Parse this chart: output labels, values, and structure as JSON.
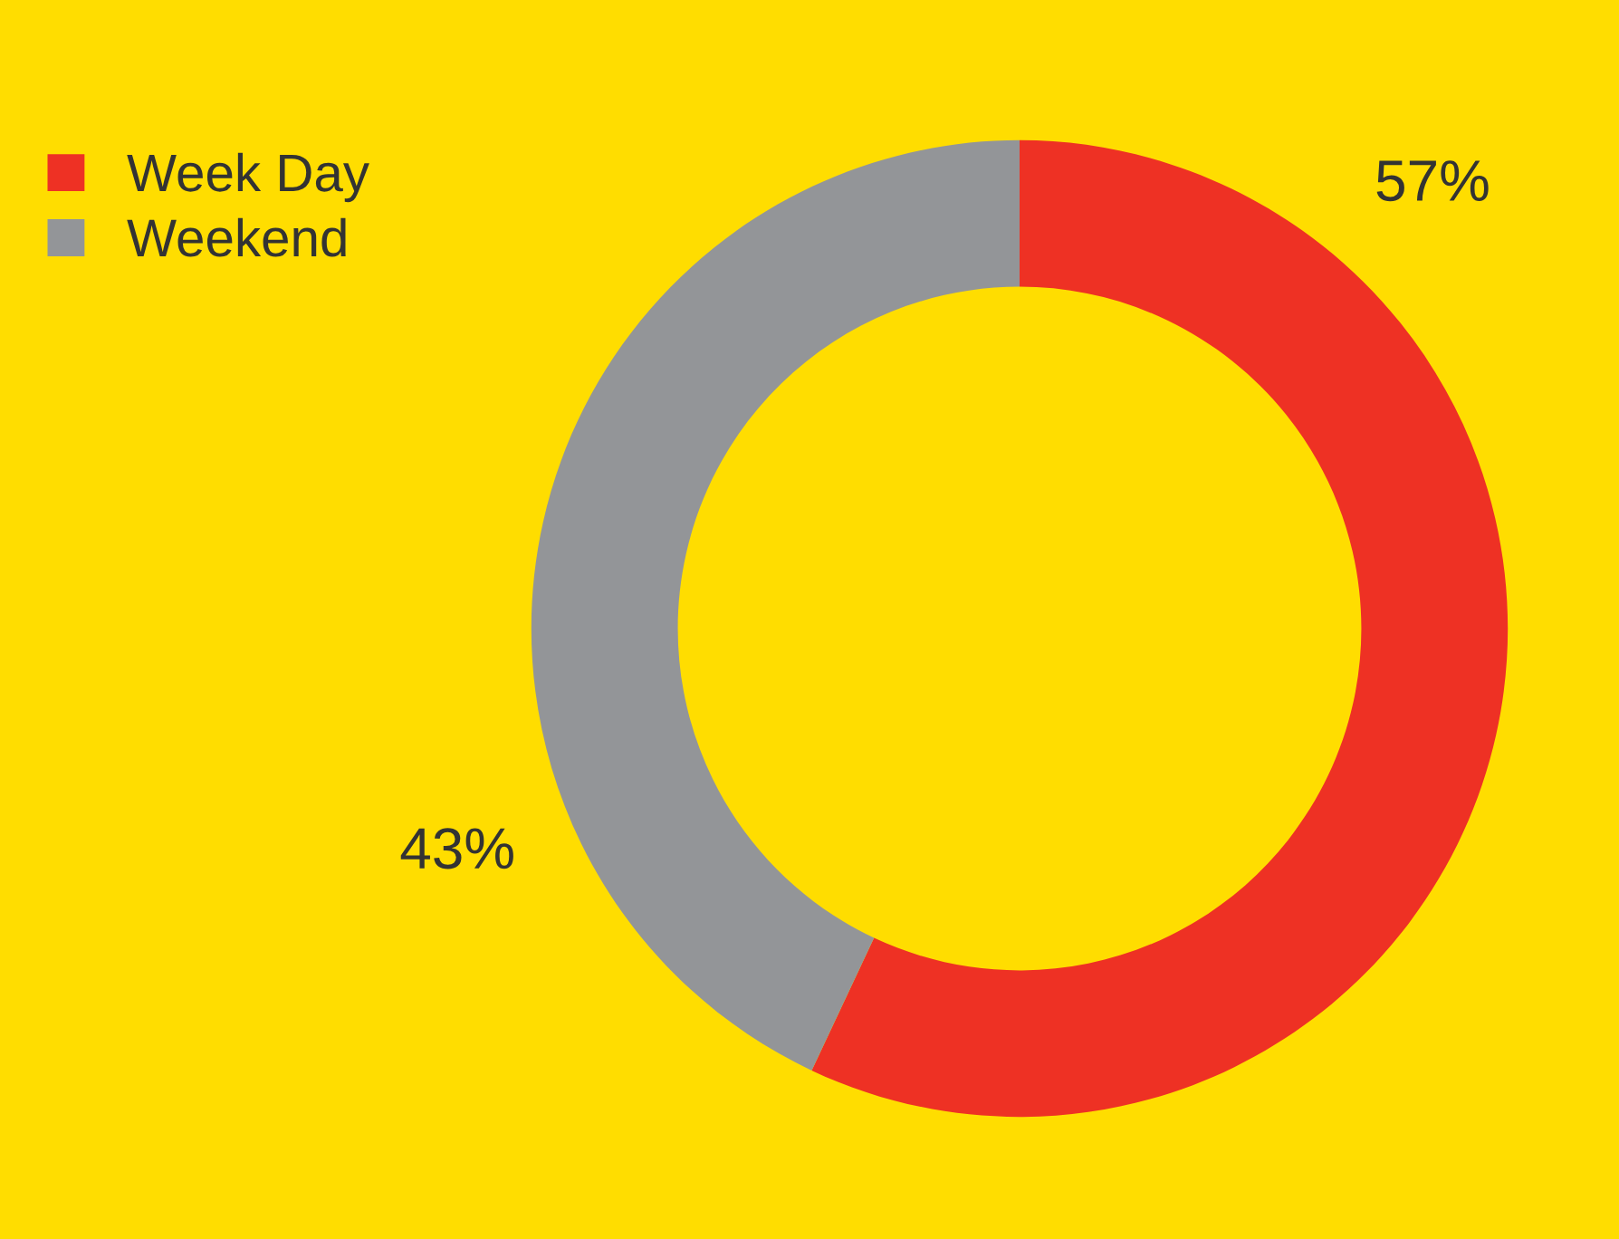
{
  "chart_data": {
    "type": "donut",
    "categories": [
      "Week Day",
      "Weekend"
    ],
    "values": [
      57,
      43
    ],
    "colors": [
      "#ee3124",
      "#939598"
    ],
    "value_labels": [
      "57%",
      "43%"
    ],
    "legend": "top left"
  }
}
